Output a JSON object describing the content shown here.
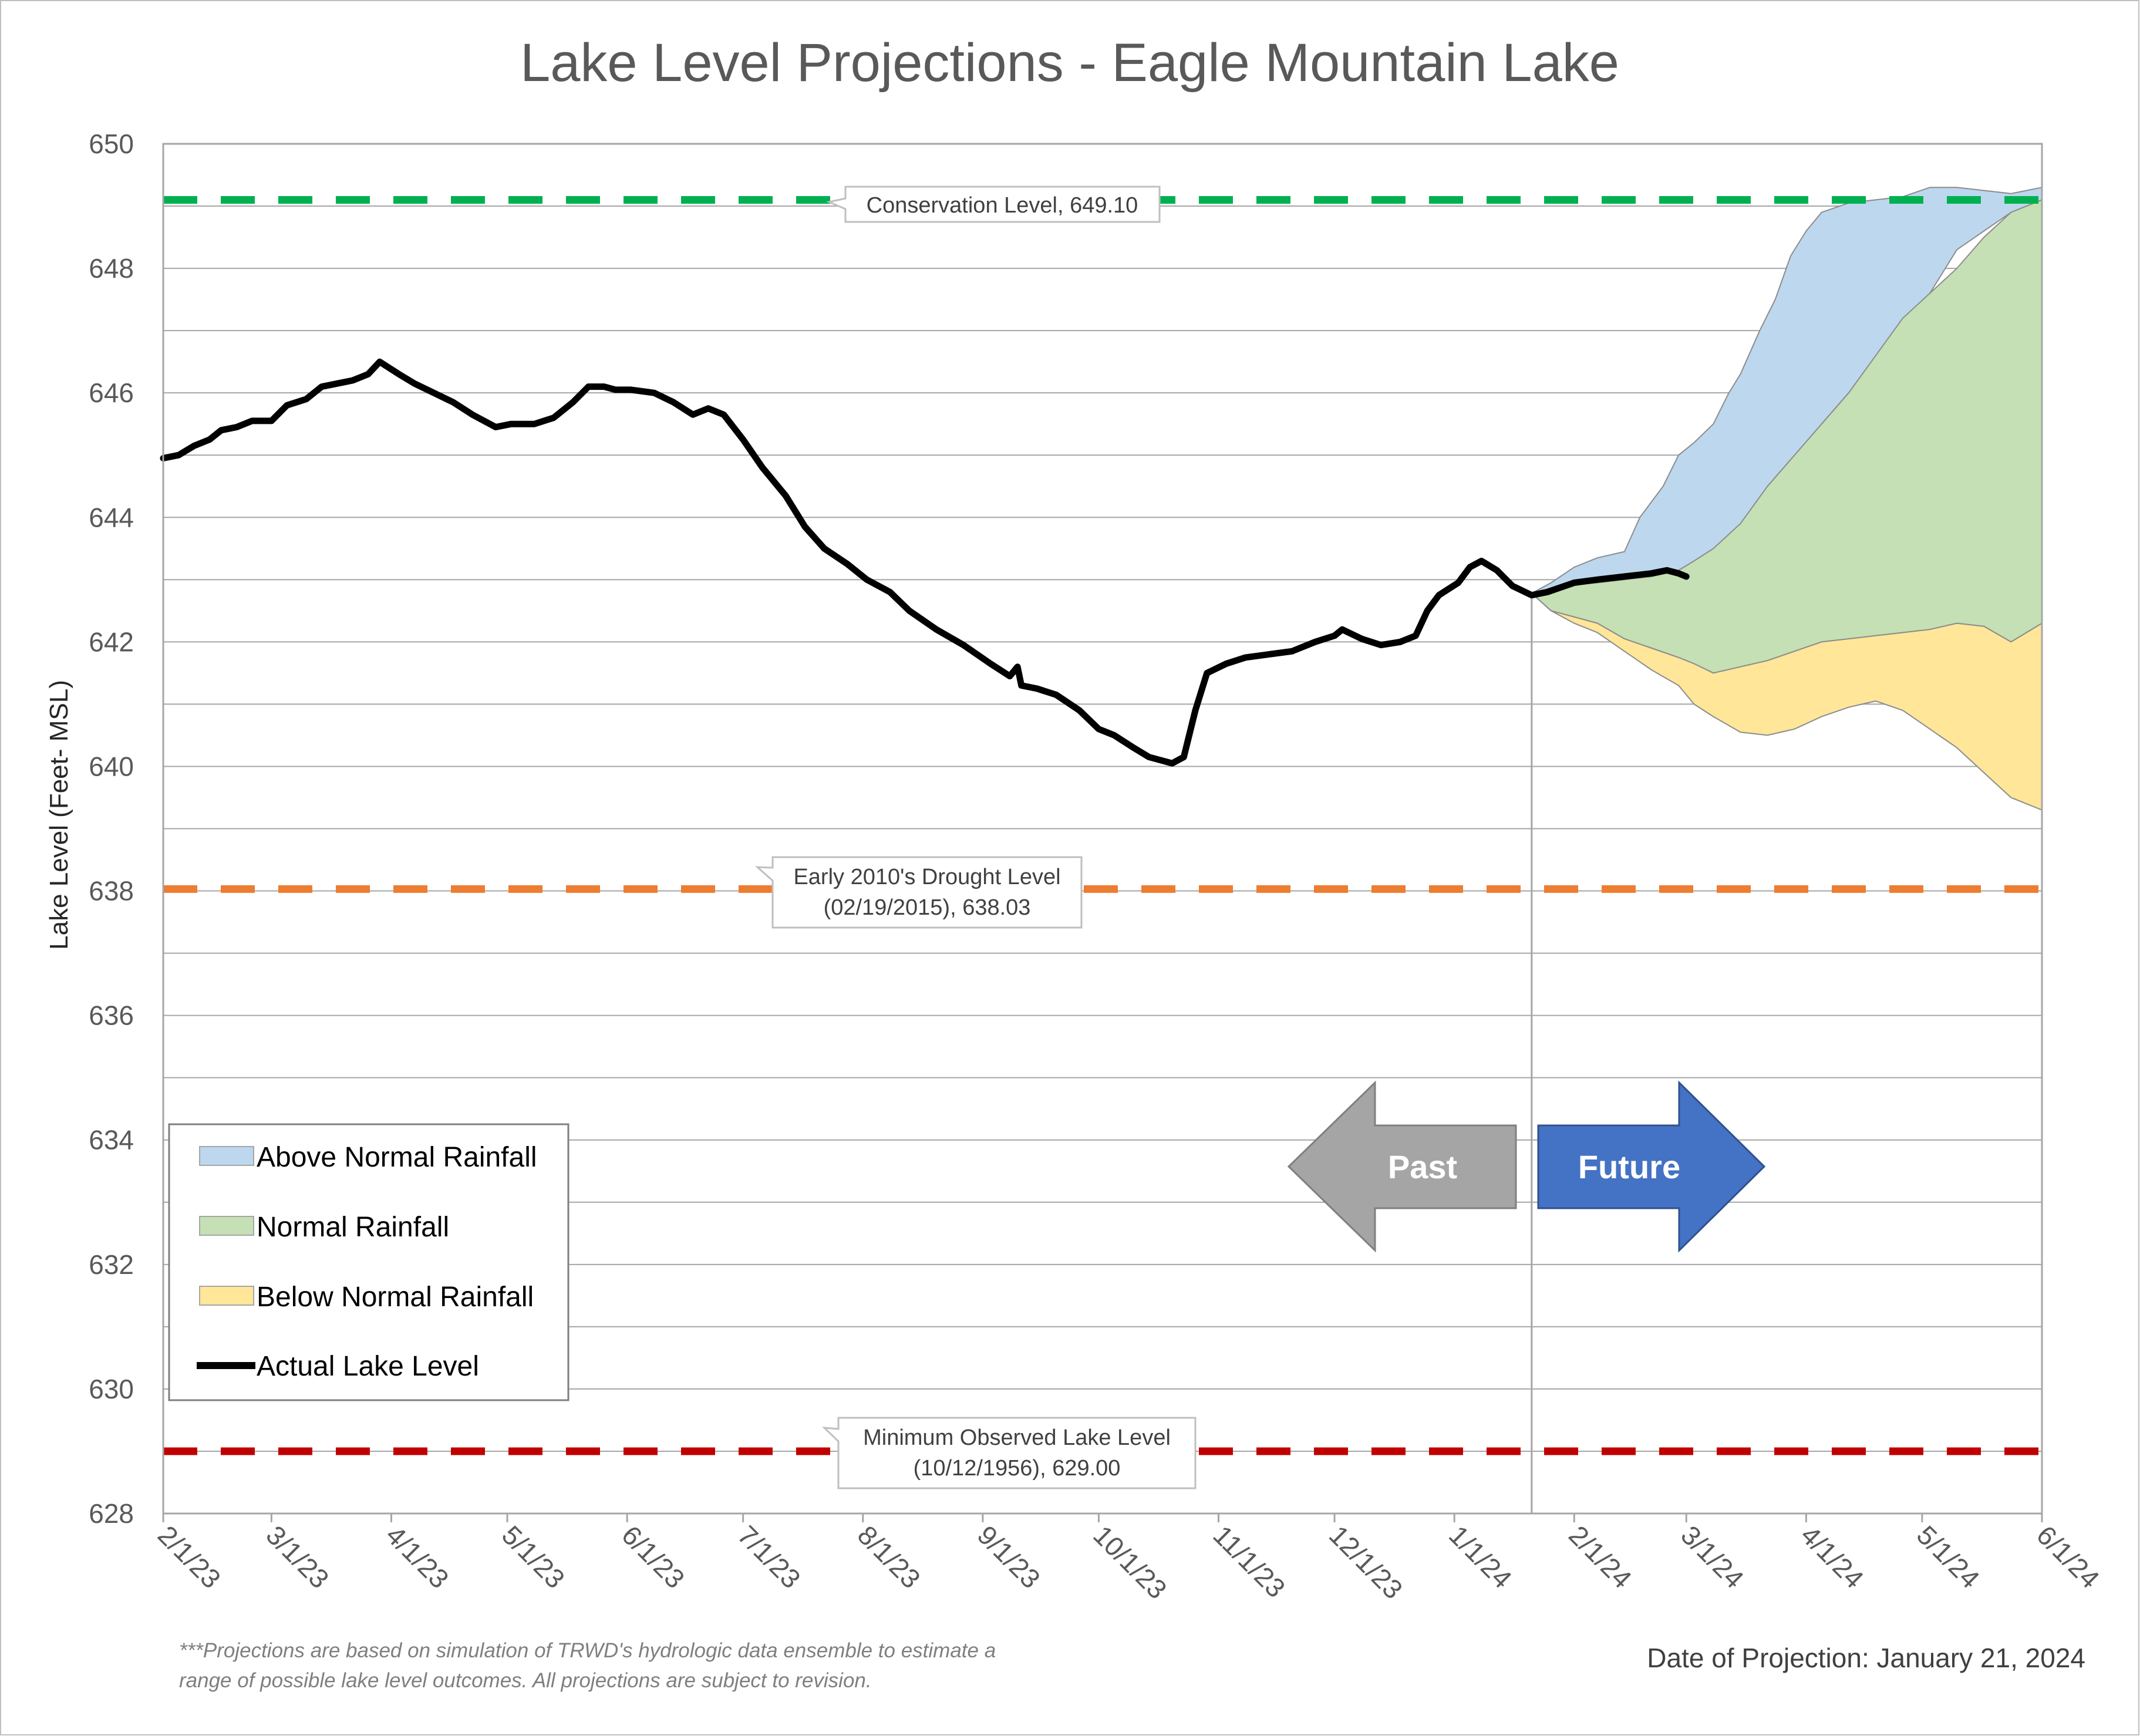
{
  "chart_data": {
    "type": "area",
    "title": "Lake Level Projections - Eagle Mountain Lake",
    "ylabel": "Lake Level (Feet- MSL)",
    "xlabel": "",
    "ylim": [
      628,
      650
    ],
    "yticks": [
      "628",
      "630",
      "632",
      "634",
      "636",
      "638",
      "640",
      "642",
      "644",
      "646",
      "648",
      "650"
    ],
    "xticks": [
      "2/1/23",
      "3/1/23",
      "4/1/23",
      "5/1/23",
      "6/1/23",
      "7/1/23",
      "8/1/23",
      "9/1/23",
      "10/1/23",
      "11/1/23",
      "12/1/23",
      "1/1/24",
      "2/1/24",
      "3/1/24",
      "4/1/24",
      "5/1/24",
      "6/1/24"
    ],
    "grid": true,
    "reference_lines": [
      {
        "value": 649.1,
        "color": "#00b050",
        "label": "Conservation Level, 649.10"
      },
      {
        "value": 638.03,
        "color": "#ed7d31",
        "label": "Early 2010's Drought Level\n(02/19/2015), 638.03"
      },
      {
        "value": 629.0,
        "color": "#c00000",
        "label": "Minimum Observed Lake Level\n(10/12/1956), 629.00"
      }
    ],
    "projection_start": "2024-01-21",
    "series": [
      {
        "name": "Above Normal Rainfall",
        "kind": "band",
        "color": "#bdd7ee",
        "points": [
          [
            "2024-01-21",
            642.78,
            642.78
          ],
          [
            "2024-01-26",
            642.95,
            642.78
          ],
          [
            "2024-02-01",
            643.2,
            642.82
          ],
          [
            "2024-02-07",
            643.35,
            642.85
          ],
          [
            "2024-02-14",
            643.45,
            642.88
          ],
          [
            "2024-02-18",
            644.0,
            642.9
          ],
          [
            "2024-02-24",
            644.5,
            642.95
          ],
          [
            "2024-02-28",
            645.0,
            643.0
          ],
          [
            "2024-03-03",
            645.2,
            643.05
          ],
          [
            "2024-03-08",
            645.5,
            643.15
          ],
          [
            "2024-03-12",
            646.0,
            643.3
          ],
          [
            "2024-03-15",
            646.3,
            643.5
          ],
          [
            "2024-03-20",
            647.0,
            643.8
          ],
          [
            "2024-03-24",
            647.5,
            644.2
          ],
          [
            "2024-03-28",
            648.2,
            644.6
          ],
          [
            "2024-04-01",
            648.6,
            645.0
          ],
          [
            "2024-04-05",
            648.9,
            645.5
          ],
          [
            "2024-04-12",
            649.05,
            646.0
          ],
          [
            "2024-04-19",
            649.1,
            646.5
          ],
          [
            "2024-04-26",
            649.15,
            647.0
          ],
          [
            "2024-05-03",
            649.3,
            647.6
          ],
          [
            "2024-05-10",
            649.3,
            648.3
          ],
          [
            "2024-05-17",
            649.25,
            648.6
          ],
          [
            "2024-05-24",
            649.2,
            648.9
          ],
          [
            "2024-06-01",
            649.3,
            649.1
          ]
        ]
      },
      {
        "name": "Normal Rainfall",
        "kind": "band",
        "color": "#c5e0b4",
        "points": [
          [
            "2024-01-21",
            642.78,
            642.78
          ],
          [
            "2024-01-26",
            642.85,
            642.5
          ],
          [
            "2024-02-01",
            642.92,
            642.4
          ],
          [
            "2024-02-07",
            642.95,
            642.3
          ],
          [
            "2024-02-14",
            643.0,
            642.05
          ],
          [
            "2024-02-21",
            643.05,
            641.9
          ],
          [
            "2024-02-28",
            643.15,
            641.75
          ],
          [
            "2024-03-03",
            643.3,
            641.65
          ],
          [
            "2024-03-08",
            643.5,
            641.5
          ],
          [
            "2024-03-15",
            643.9,
            641.6
          ],
          [
            "2024-03-22",
            644.5,
            641.7
          ],
          [
            "2024-03-29",
            645.0,
            641.85
          ],
          [
            "2024-04-05",
            645.5,
            642.0
          ],
          [
            "2024-04-12",
            646.0,
            642.05
          ],
          [
            "2024-04-19",
            646.6,
            642.1
          ],
          [
            "2024-04-26",
            647.2,
            642.15
          ],
          [
            "2024-05-03",
            647.6,
            642.2
          ],
          [
            "2024-05-10",
            648.0,
            642.3
          ],
          [
            "2024-05-17",
            648.5,
            642.25
          ],
          [
            "2024-05-24",
            648.9,
            642.0
          ],
          [
            "2024-06-01",
            649.1,
            642.3
          ]
        ]
      },
      {
        "name": "Below Normal Rainfall",
        "kind": "band",
        "color": "#ffe699",
        "points": [
          [
            "2024-01-21",
            642.78,
            642.78
          ],
          [
            "2024-01-26",
            642.5,
            642.5
          ],
          [
            "2024-02-01",
            642.4,
            642.3
          ],
          [
            "2024-02-07",
            642.3,
            642.15
          ],
          [
            "2024-02-14",
            642.05,
            641.85
          ],
          [
            "2024-02-21",
            641.9,
            641.55
          ],
          [
            "2024-02-28",
            641.75,
            641.3
          ],
          [
            "2024-03-03",
            641.65,
            641.0
          ],
          [
            "2024-03-08",
            641.5,
            640.8
          ],
          [
            "2024-03-15",
            641.6,
            640.55
          ],
          [
            "2024-03-22",
            641.7,
            640.5
          ],
          [
            "2024-03-29",
            641.85,
            640.6
          ],
          [
            "2024-04-05",
            642.0,
            640.8
          ],
          [
            "2024-04-12",
            642.05,
            640.95
          ],
          [
            "2024-04-19",
            642.1,
            641.05
          ],
          [
            "2024-04-26",
            642.15,
            640.9
          ],
          [
            "2024-05-03",
            642.2,
            640.6
          ],
          [
            "2024-05-10",
            642.3,
            640.3
          ],
          [
            "2024-05-17",
            642.25,
            639.9
          ],
          [
            "2024-05-24",
            642.0,
            639.5
          ],
          [
            "2024-06-01",
            642.3,
            639.3
          ]
        ]
      },
      {
        "name": "Actual Lake Level",
        "kind": "line",
        "color": "#000000",
        "points": [
          [
            "2023-02-01",
            644.95
          ],
          [
            "2023-02-05",
            645.0
          ],
          [
            "2023-02-09",
            645.15
          ],
          [
            "2023-02-13",
            645.25
          ],
          [
            "2023-02-16",
            645.4
          ],
          [
            "2023-02-20",
            645.45
          ],
          [
            "2023-02-24",
            645.55
          ],
          [
            "2023-03-01",
            645.55
          ],
          [
            "2023-03-05",
            645.8
          ],
          [
            "2023-03-10",
            645.9
          ],
          [
            "2023-03-14",
            646.1
          ],
          [
            "2023-03-18",
            646.15
          ],
          [
            "2023-03-22",
            646.2
          ],
          [
            "2023-03-26",
            646.3
          ],
          [
            "2023-03-29",
            646.5
          ],
          [
            "2023-04-03",
            646.3
          ],
          [
            "2023-04-07",
            646.15
          ],
          [
            "2023-04-12",
            646.0
          ],
          [
            "2023-04-17",
            645.85
          ],
          [
            "2023-04-22",
            645.65
          ],
          [
            "2023-04-28",
            645.45
          ],
          [
            "2023-05-02",
            645.5
          ],
          [
            "2023-05-08",
            645.5
          ],
          [
            "2023-05-13",
            645.6
          ],
          [
            "2023-05-18",
            645.85
          ],
          [
            "2023-05-22",
            646.1
          ],
          [
            "2023-05-26",
            646.1
          ],
          [
            "2023-05-29",
            646.05
          ],
          [
            "2023-06-02",
            646.05
          ],
          [
            "2023-06-08",
            646.0
          ],
          [
            "2023-06-13",
            645.85
          ],
          [
            "2023-06-18",
            645.65
          ],
          [
            "2023-06-22",
            645.75
          ],
          [
            "2023-06-26",
            645.65
          ],
          [
            "2023-07-01",
            645.25
          ],
          [
            "2023-07-06",
            644.8
          ],
          [
            "2023-07-12",
            644.35
          ],
          [
            "2023-07-17",
            643.85
          ],
          [
            "2023-07-22",
            643.5
          ],
          [
            "2023-07-28",
            643.25
          ],
          [
            "2023-08-02",
            643.0
          ],
          [
            "2023-08-08",
            642.8
          ],
          [
            "2023-08-13",
            642.5
          ],
          [
            "2023-08-20",
            642.2
          ],
          [
            "2023-08-27",
            641.95
          ],
          [
            "2023-09-03",
            641.65
          ],
          [
            "2023-09-08",
            641.45
          ],
          [
            "2023-09-10",
            641.6
          ],
          [
            "2023-09-11",
            641.3
          ],
          [
            "2023-09-15",
            641.25
          ],
          [
            "2023-09-20",
            641.15
          ],
          [
            "2023-09-26",
            640.9
          ],
          [
            "2023-10-01",
            640.6
          ],
          [
            "2023-10-05",
            640.5
          ],
          [
            "2023-10-10",
            640.3
          ],
          [
            "2023-10-14",
            640.15
          ],
          [
            "2023-10-20",
            640.05
          ],
          [
            "2023-10-23",
            640.15
          ],
          [
            "2023-10-26",
            640.9
          ],
          [
            "2023-10-29",
            641.5
          ],
          [
            "2023-11-03",
            641.65
          ],
          [
            "2023-11-08",
            641.75
          ],
          [
            "2023-11-14",
            641.8
          ],
          [
            "2023-11-20",
            641.85
          ],
          [
            "2023-11-26",
            642.0
          ],
          [
            "2023-12-01",
            642.1
          ],
          [
            "2023-12-03",
            642.2
          ],
          [
            "2023-12-08",
            642.05
          ],
          [
            "2023-12-13",
            641.95
          ],
          [
            "2023-12-18",
            642.0
          ],
          [
            "2023-12-22",
            642.1
          ],
          [
            "2023-12-25",
            642.5
          ],
          [
            "2023-12-28",
            642.75
          ],
          [
            "2024-01-02",
            642.95
          ],
          [
            "2024-01-05",
            643.2
          ],
          [
            "2024-01-08",
            643.3
          ],
          [
            "2024-01-12",
            643.15
          ],
          [
            "2024-01-16",
            642.9
          ],
          [
            "2024-01-21",
            642.75
          ],
          [
            "2024-01-25",
            642.8
          ],
          [
            "2024-02-01",
            642.95
          ],
          [
            "2024-02-07",
            643.0
          ],
          [
            "2024-02-14",
            643.05
          ],
          [
            "2024-02-21",
            643.1
          ],
          [
            "2024-02-25",
            643.15
          ],
          [
            "2024-02-28",
            643.1
          ],
          [
            "2024-03-01",
            643.05
          ]
        ]
      }
    ]
  },
  "legend": {
    "items": [
      {
        "label": "Above Normal Rainfall",
        "color": "#bdd7ee",
        "kind": "swatch"
      },
      {
        "label": "Normal Rainfall",
        "color": "#c5e0b4",
        "kind": "swatch"
      },
      {
        "label": "Below Normal Rainfall",
        "color": "#ffe699",
        "kind": "swatch"
      },
      {
        "label": "Actual Lake Level",
        "color": "#000000",
        "kind": "line"
      }
    ]
  },
  "arrows": {
    "past": {
      "label": "Past",
      "color": "#a5a5a5"
    },
    "future": {
      "label": "Future",
      "color": "#4472c4"
    }
  },
  "footnote": {
    "line1": "***Projections are based on simulation of TRWD's hydrologic data ensemble to estimate a",
    "line2": "range of possible lake level outcomes.  All projections are subject to revision."
  },
  "projection_date": "Date of Projection: January 21, 2024"
}
